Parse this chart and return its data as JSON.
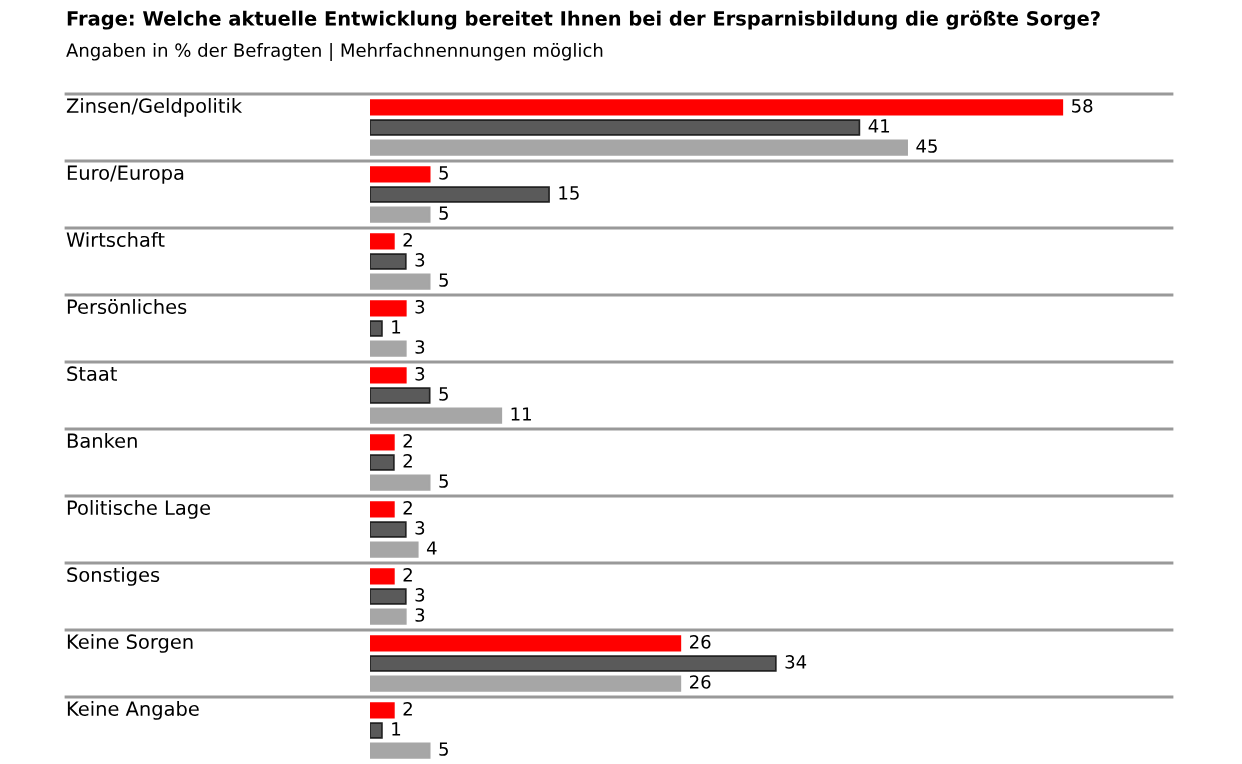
{
  "chart_data": {
    "type": "bar",
    "orientation": "horizontal",
    "title": "Frage: Welche aktuelle Entwicklung bereitet Ihnen bei der Ersparnisbildung die größte Sorge?",
    "subtitle": "Angaben in % der Befragten | Mehrfachnennungen möglich",
    "categories": [
      "Zinsen/Geldpolitik",
      "Euro/Europa",
      "Wirtschaft",
      "Persönliches",
      "Staat",
      "Banken",
      "Politische Lage",
      "Sonstiges",
      "Keine Sorgen",
      "Keine Angabe"
    ],
    "series": [
      {
        "color": "#ff0000",
        "values": [
          58,
          5,
          2,
          3,
          3,
          2,
          2,
          2,
          26,
          2
        ]
      },
      {
        "color": "#5a5a5a",
        "values": [
          41,
          15,
          3,
          1,
          5,
          2,
          3,
          3,
          34,
          1
        ]
      },
      {
        "color": "#a6a6a6",
        "values": [
          45,
          5,
          5,
          3,
          11,
          5,
          4,
          3,
          26,
          5
        ]
      }
    ],
    "data_labels": true
  }
}
